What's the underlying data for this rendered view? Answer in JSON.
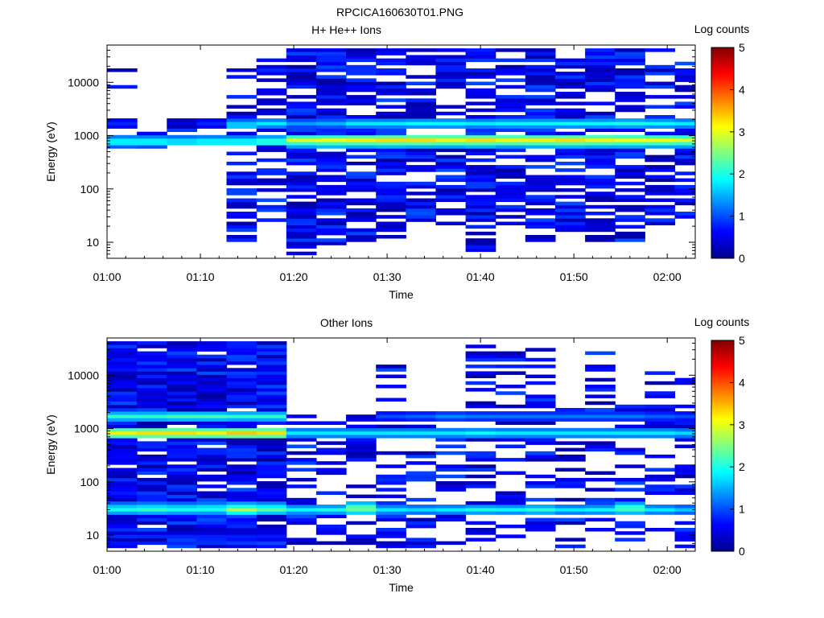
{
  "figure_title": "RPCICA160630T01.PNG",
  "colors": {
    "colormap": [
      "#00008f",
      "#0000ff",
      "#0080ff",
      "#00ffff",
      "#80ff80",
      "#ffff00",
      "#ff8000",
      "#ff0000",
      "#800000"
    ]
  },
  "chart_data": [
    {
      "type": "heatmap",
      "title": "H+ He++ Ions",
      "xlabel": "Time",
      "ylabel": "Energy (eV)",
      "x_ticks": [
        "01:00",
        "01:10",
        "01:20",
        "01:30",
        "01:40",
        "01:50",
        "02:00"
      ],
      "x_range_minutes": [
        0,
        63
      ],
      "y_scale": "log",
      "y_range": [
        5,
        50000
      ],
      "y_ticks": [
        "10",
        "100",
        "1000",
        "10000"
      ],
      "colorbar": {
        "label": "Log counts",
        "range": [
          0,
          5
        ],
        "ticks": [
          "0",
          "1",
          "2",
          "3",
          "4",
          "5"
        ]
      },
      "time_bins_minutes": [
        0,
        3.2,
        6.4,
        9.6,
        12.8,
        16.0,
        19.2,
        22.4,
        25.6,
        28.8,
        32.0,
        35.2,
        38.4,
        41.6,
        44.8,
        48.0,
        51.2,
        54.4,
        57.6,
        60.8
      ],
      "columns": [
        {
          "t": 0,
          "seed": 11,
          "density": 0.05,
          "emin": 600,
          "emax": 25000,
          "bands": [
            {
              "e": 780,
              "v": 1.8
            },
            {
              "e": 700,
              "v": 1.5
            },
            {
              "e": 1700,
              "v": 0.8
            }
          ]
        },
        {
          "t": 3.2,
          "seed": 12,
          "density": 0.05,
          "emin": 550,
          "emax": 1200,
          "bands": [
            {
              "e": 780,
              "v": 1.8
            },
            {
              "e": 700,
              "v": 1.4
            }
          ]
        },
        {
          "t": 6.4,
          "seed": 13,
          "density": 0.05,
          "emin": 550,
          "emax": 1800,
          "bands": [
            {
              "e": 780,
              "v": 1.7
            },
            {
              "e": 1650,
              "v": 0.4
            }
          ]
        },
        {
          "t": 9.6,
          "seed": 14,
          "density": 0.05,
          "emin": 600,
          "emax": 1800,
          "bands": [
            {
              "e": 780,
              "v": 1.8
            },
            {
              "e": 1700,
              "v": 0.8
            }
          ]
        },
        {
          "t": 12.8,
          "seed": 15,
          "density": 0.4,
          "emin": 10,
          "emax": 40000,
          "bands": [
            {
              "e": 780,
              "v": 1.8
            },
            {
              "e": 1600,
              "v": 1.6
            }
          ]
        },
        {
          "t": 16.0,
          "seed": 16,
          "density": 0.45,
          "emin": 10,
          "emax": 40000,
          "bands": [
            {
              "e": 780,
              "v": 2.0
            },
            {
              "e": 1650,
              "v": 1.8
            }
          ]
        },
        {
          "t": 19.2,
          "seed": 17,
          "density": 0.8,
          "emin": 6,
          "emax": 42000,
          "bands": [
            {
              "e": 850,
              "v": 3.0
            },
            {
              "e": 700,
              "v": 2.0
            },
            {
              "e": 1700,
              "v": 1.4
            }
          ]
        },
        {
          "t": 22.4,
          "seed": 18,
          "density": 0.75,
          "emin": 6,
          "emax": 42000,
          "bands": [
            {
              "e": 850,
              "v": 3.1
            },
            {
              "e": 700,
              "v": 2.2
            },
            {
              "e": 1700,
              "v": 1.5
            }
          ]
        },
        {
          "t": 25.6,
          "seed": 19,
          "density": 0.7,
          "emin": 10,
          "emax": 42000,
          "bands": [
            {
              "e": 850,
              "v": 3.2
            },
            {
              "e": 700,
              "v": 2.1
            },
            {
              "e": 1700,
              "v": 1.8
            }
          ]
        },
        {
          "t": 28.8,
          "seed": 20,
          "density": 0.75,
          "emin": 10,
          "emax": 42000,
          "bands": [
            {
              "e": 850,
              "v": 3.3
            },
            {
              "e": 700,
              "v": 2.2
            },
            {
              "e": 1650,
              "v": 1.8
            }
          ]
        },
        {
          "t": 32.0,
          "seed": 21,
          "density": 0.7,
          "emin": 20,
          "emax": 42000,
          "bands": [
            {
              "e": 850,
              "v": 3.3
            },
            {
              "e": 700,
              "v": 2.1
            },
            {
              "e": 1650,
              "v": 1.9
            }
          ]
        },
        {
          "t": 35.2,
          "seed": 22,
          "density": 0.7,
          "emin": 20,
          "emax": 42000,
          "bands": [
            {
              "e": 850,
              "v": 3.2
            },
            {
              "e": 700,
              "v": 2.1
            },
            {
              "e": 1650,
              "v": 1.9
            }
          ]
        },
        {
          "t": 38.4,
          "seed": 23,
          "density": 0.75,
          "emin": 6,
          "emax": 42000,
          "bands": [
            {
              "e": 850,
              "v": 3.3
            },
            {
              "e": 700,
              "v": 2.2
            },
            {
              "e": 1650,
              "v": 1.8
            }
          ]
        },
        {
          "t": 41.6,
          "seed": 24,
          "density": 0.7,
          "emin": 20,
          "emax": 42000,
          "bands": [
            {
              "e": 850,
              "v": 3.2
            },
            {
              "e": 700,
              "v": 2.0
            },
            {
              "e": 1650,
              "v": 1.9
            }
          ]
        },
        {
          "t": 44.8,
          "seed": 25,
          "density": 0.7,
          "emin": 10,
          "emax": 42000,
          "bands": [
            {
              "e": 850,
              "v": 3.2
            },
            {
              "e": 700,
              "v": 2.1
            },
            {
              "e": 1650,
              "v": 1.9
            }
          ]
        },
        {
          "t": 48.0,
          "seed": 26,
          "density": 0.7,
          "emin": 15,
          "emax": 42000,
          "bands": [
            {
              "e": 850,
              "v": 3.3
            },
            {
              "e": 700,
              "v": 2.2
            },
            {
              "e": 1650,
              "v": 1.9
            }
          ]
        },
        {
          "t": 51.2,
          "seed": 27,
          "density": 0.7,
          "emin": 10,
          "emax": 42000,
          "bands": [
            {
              "e": 850,
              "v": 3.2
            },
            {
              "e": 700,
              "v": 2.1
            },
            {
              "e": 1650,
              "v": 1.9
            }
          ]
        },
        {
          "t": 54.4,
          "seed": 28,
          "density": 0.7,
          "emin": 10,
          "emax": 42000,
          "bands": [
            {
              "e": 850,
              "v": 3.1
            },
            {
              "e": 700,
              "v": 2.1
            },
            {
              "e": 1650,
              "v": 2.0
            }
          ]
        },
        {
          "t": 57.6,
          "seed": 29,
          "density": 0.65,
          "emin": 20,
          "emax": 42000,
          "bands": [
            {
              "e": 850,
              "v": 3.1
            },
            {
              "e": 700,
              "v": 2.0
            },
            {
              "e": 1650,
              "v": 1.9
            }
          ]
        },
        {
          "t": 60.8,
          "seed": 30,
          "density": 0.65,
          "emin": 30,
          "emax": 42000,
          "bands": [
            {
              "e": 850,
              "v": 3.0
            },
            {
              "e": 700,
              "v": 2.0
            },
            {
              "e": 1650,
              "v": 1.8
            }
          ]
        }
      ]
    },
    {
      "type": "heatmap",
      "title": "Other Ions",
      "xlabel": "Time",
      "ylabel": "Energy (eV)",
      "x_ticks": [
        "01:00",
        "01:10",
        "01:20",
        "01:30",
        "01:40",
        "01:50",
        "02:00"
      ],
      "x_range_minutes": [
        0,
        63
      ],
      "y_scale": "log",
      "y_range": [
        5,
        50000
      ],
      "y_ticks": [
        "10",
        "100",
        "1000",
        "10000"
      ],
      "colorbar": {
        "label": "Log counts",
        "range": [
          0,
          5
        ],
        "ticks": [
          "0",
          "1",
          "2",
          "3",
          "4",
          "5"
        ]
      },
      "time_bins_minutes": [
        0,
        3.2,
        6.4,
        9.6,
        12.8,
        16.0,
        19.2,
        22.4,
        25.6,
        28.8,
        32.0,
        35.2,
        38.4,
        41.6,
        44.8,
        48.0,
        51.2,
        54.4,
        57.6,
        60.8
      ],
      "columns": [
        {
          "t": 0,
          "seed": 41,
          "density": 0.92,
          "emin": 6,
          "emax": 42000,
          "bands": [
            {
              "e": 850,
              "v": 3.2
            },
            {
              "e": 1700,
              "v": 2.1
            },
            {
              "e": 30,
              "v": 2.0
            },
            {
              "e": 36,
              "v": 1.6
            }
          ]
        },
        {
          "t": 3.2,
          "seed": 42,
          "density": 0.92,
          "emin": 6,
          "emax": 42000,
          "bands": [
            {
              "e": 850,
              "v": 3.3
            },
            {
              "e": 1700,
              "v": 2.1
            },
            {
              "e": 30,
              "v": 2.1
            },
            {
              "e": 36,
              "v": 1.7
            }
          ]
        },
        {
          "t": 6.4,
          "seed": 43,
          "density": 0.92,
          "emin": 6,
          "emax": 42000,
          "bands": [
            {
              "e": 850,
              "v": 3.3
            },
            {
              "e": 1700,
              "v": 2.2
            },
            {
              "e": 30,
              "v": 2.0
            },
            {
              "e": 36,
              "v": 1.6
            }
          ]
        },
        {
          "t": 9.6,
          "seed": 44,
          "density": 0.92,
          "emin": 6,
          "emax": 42000,
          "bands": [
            {
              "e": 850,
              "v": 3.2
            },
            {
              "e": 1700,
              "v": 2.2
            },
            {
              "e": 30,
              "v": 2.0
            },
            {
              "e": 36,
              "v": 1.7
            }
          ]
        },
        {
          "t": 12.8,
          "seed": 45,
          "density": 0.92,
          "emin": 6,
          "emax": 42000,
          "bands": [
            {
              "e": 850,
              "v": 3.4
            },
            {
              "e": 1700,
              "v": 2.1
            },
            {
              "e": 30,
              "v": 2.7
            },
            {
              "e": 36,
              "v": 2.0
            }
          ]
        },
        {
          "t": 16.0,
          "seed": 46,
          "density": 0.92,
          "emin": 6,
          "emax": 42000,
          "bands": [
            {
              "e": 850,
              "v": 3.3
            },
            {
              "e": 1700,
              "v": 2.1
            },
            {
              "e": 30,
              "v": 2.3
            },
            {
              "e": 36,
              "v": 1.8
            }
          ]
        },
        {
          "t": 19.2,
          "seed": 47,
          "density": 0.45,
          "emin": 6,
          "emax": 1800,
          "bands": [
            {
              "e": 850,
              "v": 1.8
            },
            {
              "e": 30,
              "v": 1.9
            },
            {
              "e": 24,
              "v": 1.0
            }
          ]
        },
        {
          "t": 22.4,
          "seed": 48,
          "density": 0.4,
          "emin": 6,
          "emax": 1500,
          "bands": [
            {
              "e": 850,
              "v": 1.8
            },
            {
              "e": 30,
              "v": 2.0
            }
          ]
        },
        {
          "t": 25.6,
          "seed": 49,
          "density": 0.4,
          "emin": 6,
          "emax": 2000,
          "bands": [
            {
              "e": 850,
              "v": 1.8
            },
            {
              "e": 30,
              "v": 2.4
            },
            {
              "e": 36,
              "v": 2.2
            }
          ]
        },
        {
          "t": 28.8,
          "seed": 50,
          "density": 0.4,
          "emin": 6,
          "emax": 25000,
          "bands": [
            {
              "e": 850,
              "v": 1.8
            },
            {
              "e": 1700,
              "v": 1.0
            },
            {
              "e": 30,
              "v": 1.8
            }
          ]
        },
        {
          "t": 32.0,
          "seed": 51,
          "density": 0.4,
          "emin": 6,
          "emax": 3000,
          "bands": [
            {
              "e": 850,
              "v": 1.8
            },
            {
              "e": 1700,
              "v": 1.1
            },
            {
              "e": 30,
              "v": 1.7
            }
          ]
        },
        {
          "t": 35.2,
          "seed": 52,
          "density": 0.4,
          "emin": 6,
          "emax": 3000,
          "bands": [
            {
              "e": 850,
              "v": 1.8
            },
            {
              "e": 1700,
              "v": 1.3
            },
            {
              "e": 30,
              "v": 1.8
            }
          ]
        },
        {
          "t": 38.4,
          "seed": 53,
          "density": 0.45,
          "emin": 6,
          "emax": 40000,
          "bands": [
            {
              "e": 850,
              "v": 1.9
            },
            {
              "e": 1700,
              "v": 1.2
            },
            {
              "e": 30,
              "v": 2.0
            }
          ]
        },
        {
          "t": 41.6,
          "seed": 54,
          "density": 0.4,
          "emin": 6,
          "emax": 30000,
          "bands": [
            {
              "e": 850,
              "v": 1.8
            },
            {
              "e": 1700,
              "v": 1.2
            },
            {
              "e": 30,
              "v": 1.9
            }
          ]
        },
        {
          "t": 44.8,
          "seed": 55,
          "density": 0.4,
          "emin": 10,
          "emax": 40000,
          "bands": [
            {
              "e": 850,
              "v": 1.8
            },
            {
              "e": 1700,
              "v": 1.2
            },
            {
              "e": 30,
              "v": 2.1
            }
          ]
        },
        {
          "t": 48.0,
          "seed": 56,
          "density": 0.4,
          "emin": 6,
          "emax": 3000,
          "bands": [
            {
              "e": 850,
              "v": 1.8
            },
            {
              "e": 1700,
              "v": 1.2
            },
            {
              "e": 30,
              "v": 1.8
            }
          ]
        },
        {
          "t": 51.2,
          "seed": 57,
          "density": 0.4,
          "emin": 6,
          "emax": 30000,
          "bands": [
            {
              "e": 850,
              "v": 1.8
            },
            {
              "e": 1700,
              "v": 1.2
            },
            {
              "e": 30,
              "v": 1.9
            }
          ]
        },
        {
          "t": 54.4,
          "seed": 58,
          "density": 0.4,
          "emin": 6,
          "emax": 3000,
          "bands": [
            {
              "e": 850,
              "v": 1.8
            },
            {
              "e": 1700,
              "v": 1.2
            },
            {
              "e": 30,
              "v": 2.2
            },
            {
              "e": 36,
              "v": 2.0
            }
          ]
        },
        {
          "t": 57.6,
          "seed": 59,
          "density": 0.4,
          "emin": 10,
          "emax": 12000,
          "bands": [
            {
              "e": 850,
              "v": 1.8
            },
            {
              "e": 1700,
              "v": 1.1
            },
            {
              "e": 30,
              "v": 1.8
            }
          ]
        },
        {
          "t": 60.8,
          "seed": 60,
          "density": 0.4,
          "emin": 6,
          "emax": 10000,
          "bands": [
            {
              "e": 850,
              "v": 1.7
            },
            {
              "e": 1700,
              "v": 1.0
            },
            {
              "e": 30,
              "v": 1.6
            }
          ]
        }
      ]
    }
  ]
}
